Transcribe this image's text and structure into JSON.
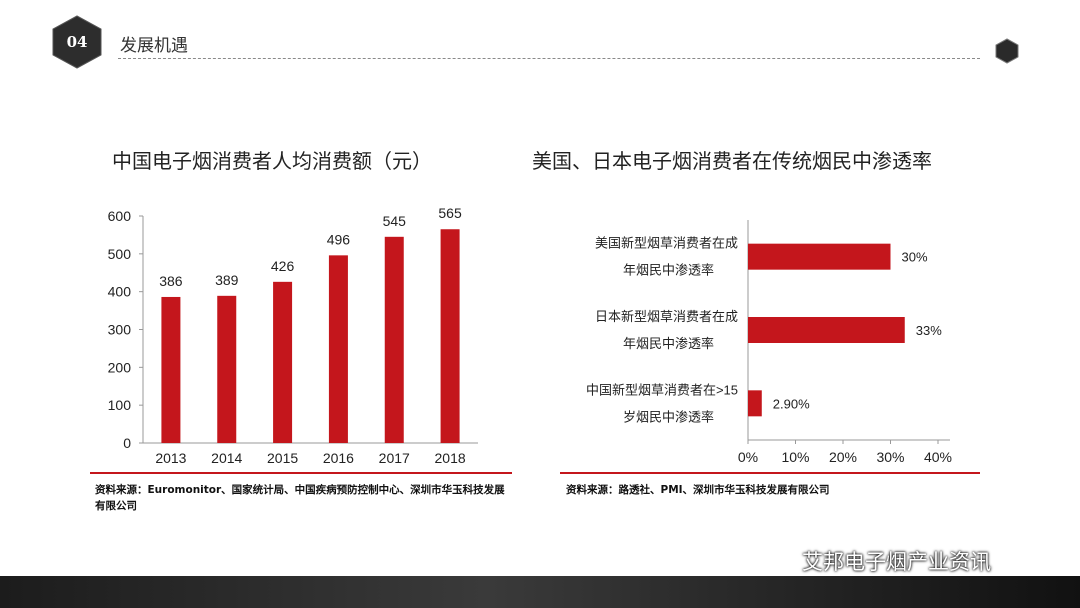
{
  "header": {
    "section_number": "04",
    "section_title": "发展机遇"
  },
  "colors": {
    "bar": "#c4161c",
    "badge": "#2d2d2d",
    "axis": "#999999"
  },
  "chart_data": [
    {
      "type": "bar",
      "title": "中国电子烟消费者人均消费额（元）",
      "categories": [
        "2013",
        "2014",
        "2015",
        "2016",
        "2017",
        "2018"
      ],
      "values": [
        386,
        389,
        426,
        496,
        545,
        565
      ],
      "data_labels": [
        "386",
        "389",
        "426",
        "496",
        "545",
        "565"
      ],
      "ylim": [
        0,
        600
      ],
      "yticks": [
        "0",
        "100",
        "200",
        "300",
        "400",
        "500",
        "600"
      ],
      "xlabel": "",
      "ylabel": "",
      "source": "资料来源：Euromonitor、国家统计局、中国疾病预防控制中心、深圳市华玉科技发展有限公司"
    },
    {
      "type": "bar",
      "orientation": "horizontal",
      "title": "美国、日本电子烟消费者在传统烟民中渗透率",
      "categories": [
        [
          "美国新型烟草消费者在成",
          "年烟民中渗透率"
        ],
        [
          "日本新型烟草消费者在成",
          "年烟民中渗透率"
        ],
        [
          "中国新型烟草消费者在>15",
          "岁烟民中渗透率"
        ]
      ],
      "values": [
        30,
        33,
        2.9
      ],
      "data_labels": [
        "30%",
        "33%",
        "2.90%"
      ],
      "xlim": [
        0,
        40
      ],
      "xticks": [
        "0%",
        "10%",
        "20%",
        "30%",
        "40%"
      ],
      "source": "资料来源：路透社、PMI、深圳市华玉科技发展有限公司"
    }
  ],
  "watermark": {
    "text": "艾邦电子烟产业资讯"
  }
}
